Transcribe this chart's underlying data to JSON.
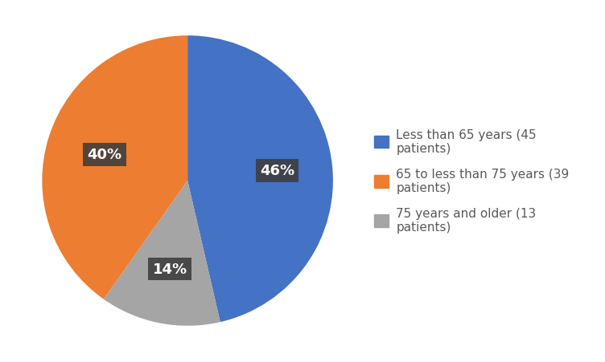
{
  "slices": [
    45,
    13,
    39
  ],
  "percentages": [
    "46%",
    "14%",
    "40%"
  ],
  "colors": [
    "#4472c4",
    "#a5a5a5",
    "#ed7d31"
  ],
  "labels": [
    "Less than 65 years (45\npatients)",
    "65 to less than 75 years (39\npatients)",
    "75 years and older (13\npatients)"
  ],
  "legend_colors": [
    "#4472c4",
    "#ed7d31",
    "#a5a5a5"
  ],
  "startangle": 90,
  "background_color": "#ffffff",
  "label_box_color": "#3d3d3d",
  "label_text_color": "#ffffff",
  "legend_text_color": "#595959",
  "legend_fontsize": 11,
  "pct_radii": [
    0.62,
    0.62,
    0.6
  ]
}
